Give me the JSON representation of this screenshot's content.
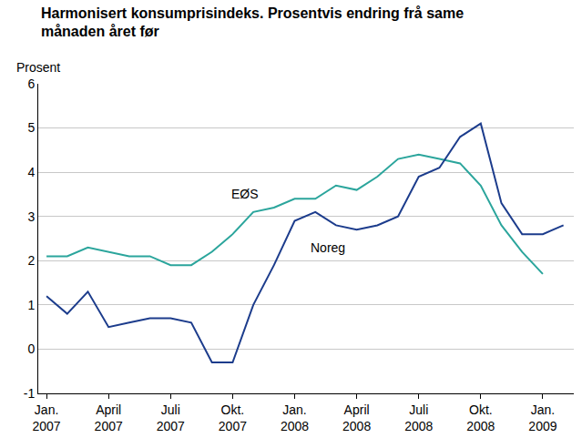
{
  "chart_data": {
    "type": "line",
    "title": "Harmonisert konsumprisindeks. Prosentvis endring frå same\nmånaden året før",
    "ylabel": "Prosent",
    "categories": [
      "Jan.\n2007",
      null,
      null,
      "April\n2007",
      null,
      null,
      "Juli\n2007",
      null,
      null,
      "Okt.\n2007",
      null,
      null,
      "Jan.\n2008",
      null,
      null,
      "April\n2008",
      null,
      null,
      "Juli\n2008",
      null,
      null,
      "Okt.\n2008",
      null,
      null,
      "Jan.\n2009",
      null
    ],
    "series": [
      {
        "name": "EØS",
        "color": "#2ba59c",
        "values": [
          2.1,
          2.1,
          2.3,
          2.2,
          2.1,
          2.1,
          1.9,
          1.9,
          2.2,
          2.6,
          3.1,
          3.2,
          3.4,
          3.4,
          3.7,
          3.6,
          3.9,
          4.3,
          4.4,
          4.3,
          4.2,
          3.7,
          2.8,
          2.2,
          1.7,
          null
        ]
      },
      {
        "name": "Noreg",
        "color": "#1c3c8c",
        "values": [
          1.2,
          0.8,
          1.3,
          0.5,
          0.6,
          0.7,
          0.7,
          0.6,
          -0.3,
          -0.3,
          1.0,
          1.9,
          2.9,
          3.1,
          2.8,
          2.7,
          2.8,
          3.0,
          3.9,
          4.1,
          4.8,
          5.1,
          3.3,
          2.6,
          2.6,
          2.8
        ]
      }
    ],
    "annotations": [
      {
        "text": "EØS",
        "x": 9.6,
        "y": 3.5
      },
      {
        "text": "Noreg",
        "x": 13.6,
        "y": 2.3
      }
    ],
    "ylim": [
      -1,
      6
    ],
    "yticks": [
      -1,
      0,
      1,
      2,
      3,
      4,
      5,
      6
    ],
    "grid": true
  }
}
